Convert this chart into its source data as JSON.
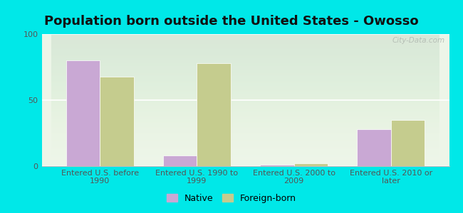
{
  "title": "Population born outside the United States - Owosso",
  "categories": [
    "Entered U.S. before\n1990",
    "Entered U.S. 1990 to\n1999",
    "Entered U.S. 2000 to\n2009",
    "Entered U.S. 2010 or\nlater"
  ],
  "native_values": [
    80,
    8,
    1,
    28
  ],
  "foreign_born_values": [
    68,
    78,
    2,
    35
  ],
  "native_color": "#c9a8d4",
  "foreign_born_color": "#c5cc8e",
  "ylim": [
    0,
    100
  ],
  "yticks": [
    0,
    50,
    100
  ],
  "bar_width": 0.35,
  "legend_native": "Native",
  "legend_foreign": "Foreign-born",
  "watermark": "City-Data.com",
  "title_fontsize": 13,
  "tick_fontsize": 8,
  "legend_fontsize": 9,
  "outer_bg": "#00e8e8"
}
